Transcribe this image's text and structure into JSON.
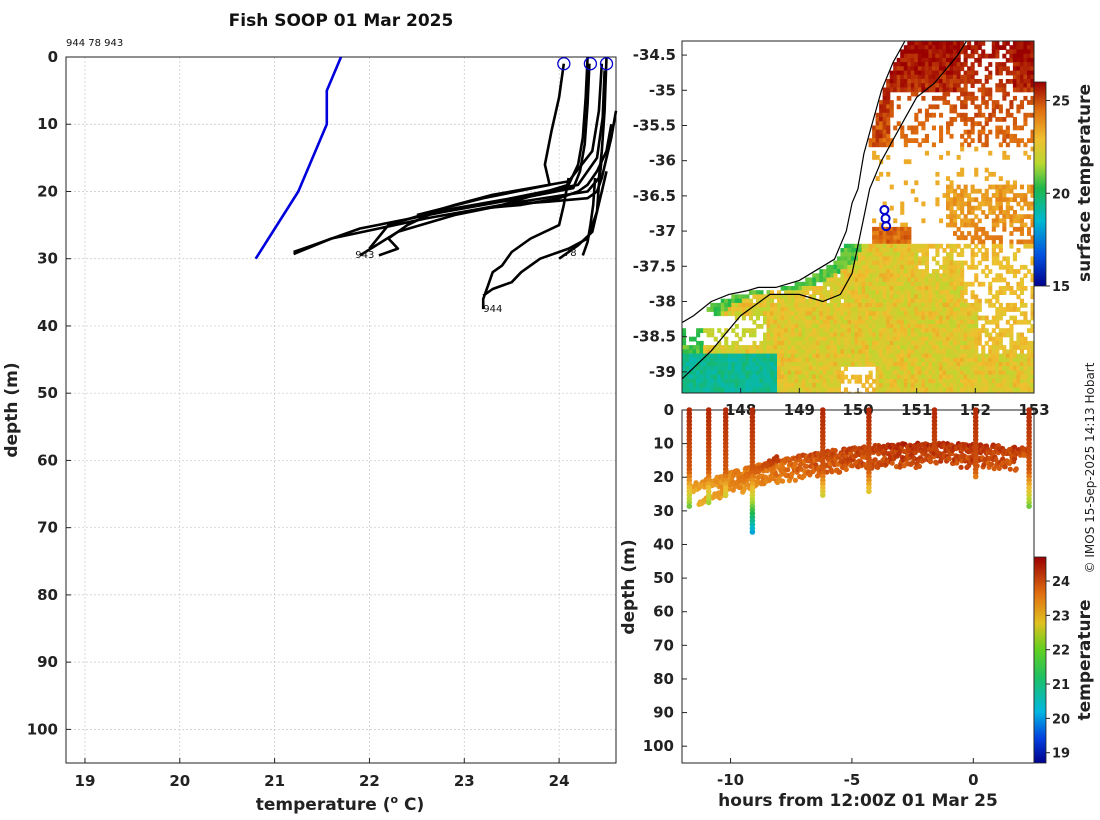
{
  "figure": {
    "title": "Fish SOOP 01 Mar 2025",
    "profile_ids_label": "944 78 943",
    "credit": "© IMOS 15-Sep-2025 14:13 Hobart"
  },
  "chart_data": [
    {
      "name": "profiles",
      "type": "line",
      "title": "Fish SOOP 01 Mar 2025",
      "xlabel": "temperature (",
      "xlabel_sup": "o",
      "xlabel_end": " C)",
      "ylabel": "depth (m)",
      "xlim": [
        18.8,
        24.6
      ],
      "ylim": [
        105,
        0
      ],
      "xticks": [
        19,
        20,
        21,
        22,
        23,
        24
      ],
      "yticks": [
        0,
        10,
        20,
        30,
        40,
        50,
        60,
        70,
        80,
        90,
        100
      ],
      "climatology": {
        "color": "#0000dd",
        "x": [
          21.7,
          21.55,
          21.55,
          21.25,
          20.8
        ],
        "y": [
          0,
          5,
          10,
          20,
          30
        ]
      },
      "profiles": [
        {
          "x": [
            24.3,
            24.28,
            24.25,
            24.2,
            24.1,
            23.4,
            22.6,
            21.6,
            21.2
          ],
          "y": [
            0,
            6,
            12,
            16,
            19,
            22,
            24,
            27,
            29.3
          ]
        },
        {
          "x": [
            24.32,
            24.3,
            24.27,
            24.22,
            24.15,
            23.6,
            22.8,
            21.9,
            21.4,
            21.2
          ],
          "y": [
            1,
            7,
            13,
            17,
            19.5,
            21,
            23,
            25.5,
            28,
            29
          ]
        },
        {
          "x": [
            24.5,
            24.48,
            24.45,
            24.42,
            24.3,
            23.6,
            22.9,
            22.3,
            21.9
          ],
          "y": [
            0,
            8,
            14,
            18,
            20,
            21.5,
            23.5,
            26,
            29.5
          ]
        },
        {
          "x": [
            24.48,
            24.46,
            24.4,
            24.2,
            23.5,
            22.7,
            22.4,
            22.2,
            22.3,
            22.1
          ],
          "y": [
            2,
            9,
            15,
            19,
            21,
            23,
            25,
            27,
            28.5,
            29.5
          ]
        },
        {
          "x": [
            24.45,
            24.42,
            24.35,
            24.1,
            23.3,
            22.9,
            22.2,
            22.0
          ],
          "y": [
            1,
            8,
            14,
            18.5,
            20.5,
            22,
            25,
            28.5
          ]
        },
        {
          "x": [
            24.05,
            24.0,
            23.92,
            23.85,
            23.9,
            23.2,
            22.5
          ],
          "y": [
            1,
            6,
            11,
            16,
            19,
            21,
            23.5
          ]
        },
        {
          "x": [
            24.55,
            24.5,
            24.4,
            24.3,
            24.2,
            24.0,
            23.6,
            23.2
          ],
          "y": [
            10,
            14,
            17,
            19,
            20,
            21,
            22,
            22.5
          ]
        },
        {
          "x": [
            24.6,
            24.55,
            24.5,
            24.45,
            24.4,
            24.3,
            23.9,
            23.4
          ],
          "y": [
            8,
            12,
            15,
            18,
            20,
            21,
            21.5,
            22
          ]
        },
        {
          "x": [
            24.1,
            24.05,
            24.0,
            23.7,
            23.5,
            23.4,
            23.3,
            23.25,
            23.2,
            23.2
          ],
          "y": [
            18,
            22,
            25,
            27,
            29,
            31,
            32,
            34,
            36,
            37.5
          ]
        },
        {
          "x": [
            24.5,
            24.45,
            24.4,
            24.35,
            24.3,
            24.1,
            23.8,
            23.6,
            23.5,
            23.3,
            23.2
          ],
          "y": [
            17,
            20,
            23,
            25,
            27,
            28.5,
            30,
            32,
            33.5,
            34.5,
            35.5
          ]
        },
        {
          "x": [
            24.45,
            24.42,
            24.4,
            24.35,
            24.2,
            24.0
          ],
          "y": [
            15,
            19,
            23,
            26,
            28,
            30
          ]
        },
        {
          "x": [
            24.38,
            24.36,
            24.33,
            24.3,
            24.25
          ],
          "y": [
            18,
            22,
            25,
            27.5,
            29.5
          ]
        }
      ],
      "surface_markers": [
        24.05,
        24.33,
        24.5
      ],
      "profile_labels": [
        {
          "text": "943",
          "x": 21.85,
          "y": 29.3
        },
        {
          "text": "78",
          "x": 24.05,
          "y": 29.0
        },
        {
          "text": "944",
          "x": 23.2,
          "y": 37.3
        }
      ]
    },
    {
      "name": "map",
      "type": "heatmap",
      "colorbar_label": "surface temperature",
      "colorbar_ticks": [
        15,
        20,
        25
      ],
      "colorbar_range": [
        15,
        26
      ],
      "xticks": [
        148,
        149,
        150,
        151,
        152,
        153
      ],
      "xtick_labels": [
        "148",
        "149",
        "150",
        "151",
        "152",
        "153"
      ],
      "yticks": [
        -34.5,
        -35,
        -35.5,
        -36,
        -36.5,
        -37,
        -37.5,
        -38,
        -38.5,
        -39
      ],
      "xlim": [
        147.0,
        153.0
      ],
      "ylim": [
        -39.3,
        -34.3
      ],
      "track": {
        "x": [
          150.45,
          150.47,
          150.48
        ],
        "y": [
          -36.7,
          -36.82,
          -36.93
        ]
      },
      "coastline": {
        "x": [
          147.0,
          147.2,
          147.5,
          147.8,
          148.1,
          148.3,
          148.6,
          149.0,
          149.3,
          149.6,
          149.8,
          149.9,
          150.0,
          150.05,
          150.1,
          150.2,
          150.3,
          150.4,
          150.5,
          150.6,
          150.7,
          150.8
        ],
        "y": [
          -38.3,
          -38.2,
          -38.0,
          -37.9,
          -37.85,
          -37.8,
          -37.8,
          -37.7,
          -37.55,
          -37.4,
          -37.0,
          -36.6,
          -36.4,
          -36.15,
          -35.9,
          -35.6,
          -35.3,
          -35.0,
          -34.8,
          -34.6,
          -34.45,
          -34.3
        ]
      },
      "shelf": {
        "x": [
          147.0,
          147.5,
          148.0,
          148.5,
          149.0,
          149.4,
          149.7,
          149.9,
          150.0,
          150.1,
          150.2,
          150.4,
          150.6,
          150.8,
          151.0,
          151.3,
          151.5,
          151.7,
          151.85
        ],
        "y": [
          -39.1,
          -38.7,
          -38.2,
          -37.9,
          -37.9,
          -38.0,
          -37.9,
          -37.6,
          -37.2,
          -36.8,
          -36.4,
          -36.0,
          -35.7,
          -35.4,
          -35.1,
          -34.9,
          -34.7,
          -34.5,
          -34.3
        ]
      }
    },
    {
      "name": "timeseries",
      "type": "scatter",
      "xlabel": "hours from 12:00Z 01 Mar 25",
      "ylabel": "depth (m)",
      "xlim": [
        -12,
        2.5
      ],
      "ylim": [
        105,
        0
      ],
      "xticks": [
        -10,
        -5,
        0
      ],
      "xtick_labels": [
        "-10",
        "-5",
        "0"
      ],
      "yticks": [
        0,
        10,
        20,
        30,
        40,
        50,
        60,
        70,
        80,
        90,
        100
      ],
      "colorbar_label": "temperature",
      "colorbar_ticks": [
        19,
        20,
        21,
        22,
        23,
        24
      ],
      "colorbar_range": [
        18.7,
        24.7
      ],
      "casts": [
        {
          "t": -11.7,
          "bottom": 29.5
        },
        {
          "t": -10.9,
          "bottom": 28
        },
        {
          "t": -10.2,
          "bottom": 26
        },
        {
          "t": -9.1,
          "bottom": 37
        },
        {
          "t": -6.2,
          "bottom": 26
        },
        {
          "t": -4.3,
          "bottom": 25
        },
        {
          "t": -1.6,
          "bottom": 12
        },
        {
          "t": 0.1,
          "bottom": 20
        },
        {
          "t": 2.3,
          "bottom": 29
        }
      ]
    }
  ]
}
